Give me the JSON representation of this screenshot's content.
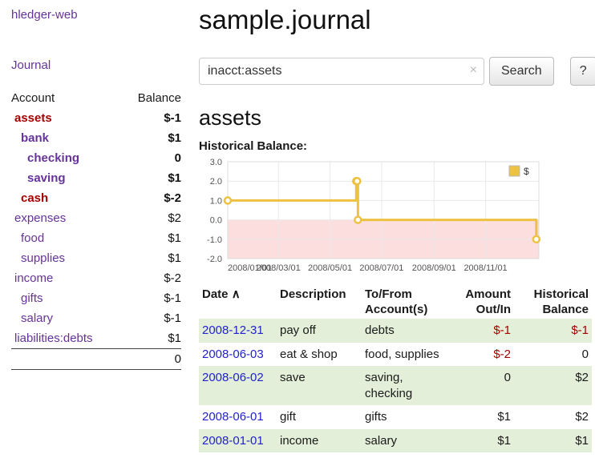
{
  "app": {
    "title": "hledger-web"
  },
  "sidebar": {
    "journal_label": "Journal",
    "accounts": {
      "header_account": "Account",
      "header_balance": "Balance",
      "rows": [
        {
          "name": "assets",
          "balance": "$-1",
          "indent": 0,
          "bold": true,
          "name_class": "neg",
          "balance_class": "neg"
        },
        {
          "name": "bank",
          "balance": "$1",
          "indent": 1,
          "bold": true,
          "name_class": "",
          "balance_class": ""
        },
        {
          "name": "checking",
          "balance": "0",
          "indent": 2,
          "bold": true,
          "name_class": "",
          "balance_class": ""
        },
        {
          "name": "saving",
          "balance": "$1",
          "indent": 2,
          "bold": true,
          "name_class": "",
          "balance_class": ""
        },
        {
          "name": "cash",
          "balance": "$-2",
          "indent": 1,
          "bold": true,
          "name_class": "neg",
          "balance_class": "neg"
        },
        {
          "name": "expenses",
          "balance": "$2",
          "indent": 0,
          "bold": false,
          "name_class": "",
          "balance_class": ""
        },
        {
          "name": "food",
          "balance": "$1",
          "indent": 1,
          "bold": false,
          "name_class": "",
          "balance_class": ""
        },
        {
          "name": "supplies",
          "balance": "$1",
          "indent": 1,
          "bold": false,
          "name_class": "",
          "balance_class": ""
        },
        {
          "name": "income",
          "balance": "$-2",
          "indent": 0,
          "bold": false,
          "name_class": "",
          "balance_class": "negsoft"
        },
        {
          "name": "gifts",
          "balance": "$-1",
          "indent": 1,
          "bold": false,
          "name_class": "",
          "balance_class": "negsoft"
        },
        {
          "name": "salary",
          "balance": "$-1",
          "indent": 1,
          "bold": false,
          "name_class": "",
          "balance_class": "negsoft"
        },
        {
          "name": "liabilities:debts",
          "balance": "$1",
          "indent": 0,
          "bold": false,
          "name_class": "",
          "balance_class": ""
        }
      ],
      "total": "0"
    }
  },
  "main": {
    "title": "sample.journal",
    "search": {
      "value": "inacct:assets",
      "clear_icon": "×",
      "button_label": "Search",
      "help_label": "?"
    },
    "account_heading": "assets",
    "chart_label": "Historical Balance:",
    "register": {
      "headers": {
        "date": "Date",
        "sort_icon": "∧",
        "description": "Description",
        "accounts": "To/From Account(s)",
        "amount": "Amount Out/In",
        "balance": "Historical Balance"
      },
      "rows": [
        {
          "date": "2008-12-31",
          "description": "pay off",
          "accounts": "debts",
          "amount": "$-1",
          "amount_class": "neg",
          "balance": "$-1",
          "balance_class": "neg"
        },
        {
          "date": "2008-06-03",
          "description": "eat & shop",
          "accounts": "food, supplies",
          "amount": "$-2",
          "amount_class": "neg",
          "balance": "0",
          "balance_class": ""
        },
        {
          "date": "2008-06-02",
          "description": "save",
          "accounts": "saving, checking",
          "amount": "0",
          "amount_class": "",
          "balance": "$2",
          "balance_class": ""
        },
        {
          "date": "2008-06-01",
          "description": "gift",
          "accounts": "gifts",
          "amount": "$1",
          "amount_class": "",
          "balance": "$2",
          "balance_class": ""
        },
        {
          "date": "2008-01-01",
          "description": "income",
          "accounts": "salary",
          "amount": "$1",
          "amount_class": "",
          "balance": "$1",
          "balance_class": ""
        }
      ]
    }
  },
  "chart_data": {
    "type": "line",
    "title": "Historical Balance:",
    "step": true,
    "xlabel": "",
    "ylabel": "",
    "xlim": [
      0,
      368
    ],
    "ylim": [
      -2,
      3
    ],
    "yticks": [
      3,
      2,
      1,
      0,
      -1,
      -2
    ],
    "xticks": [
      {
        "x": 0,
        "label": "2008/01/01"
      },
      {
        "x": 60,
        "label": "2008/03/01"
      },
      {
        "x": 121,
        "label": "2008/05/01"
      },
      {
        "x": 182,
        "label": "2008/07/01"
      },
      {
        "x": 244,
        "label": "2008/09/01"
      },
      {
        "x": 305,
        "label": "2008/11/01"
      }
    ],
    "series": [
      {
        "name": "$",
        "color": "#edc240",
        "points": [
          {
            "date": "2008-01-01",
            "x": 0,
            "y": 1
          },
          {
            "date": "2008-06-01",
            "x": 152,
            "y": 2
          },
          {
            "date": "2008-06-02",
            "x": 153,
            "y": 2
          },
          {
            "date": "2008-06-03",
            "x": 154,
            "y": 0
          },
          {
            "date": "2008-12-31",
            "x": 365,
            "y": -1
          }
        ]
      }
    ],
    "legend": {
      "label": "$",
      "position": "top-right"
    },
    "negative_region_color": "#fcdede",
    "grid": true
  },
  "colors": {
    "link_purple": "#663399",
    "negative_dark": "#a40000",
    "negative_soft": "#bb6a6a",
    "date_link_blue": "#2222cc",
    "row_stripe_green": "#e3efd8",
    "chart_line_gold": "#edc240",
    "chart_negative_region_pink": "#fcdede"
  }
}
